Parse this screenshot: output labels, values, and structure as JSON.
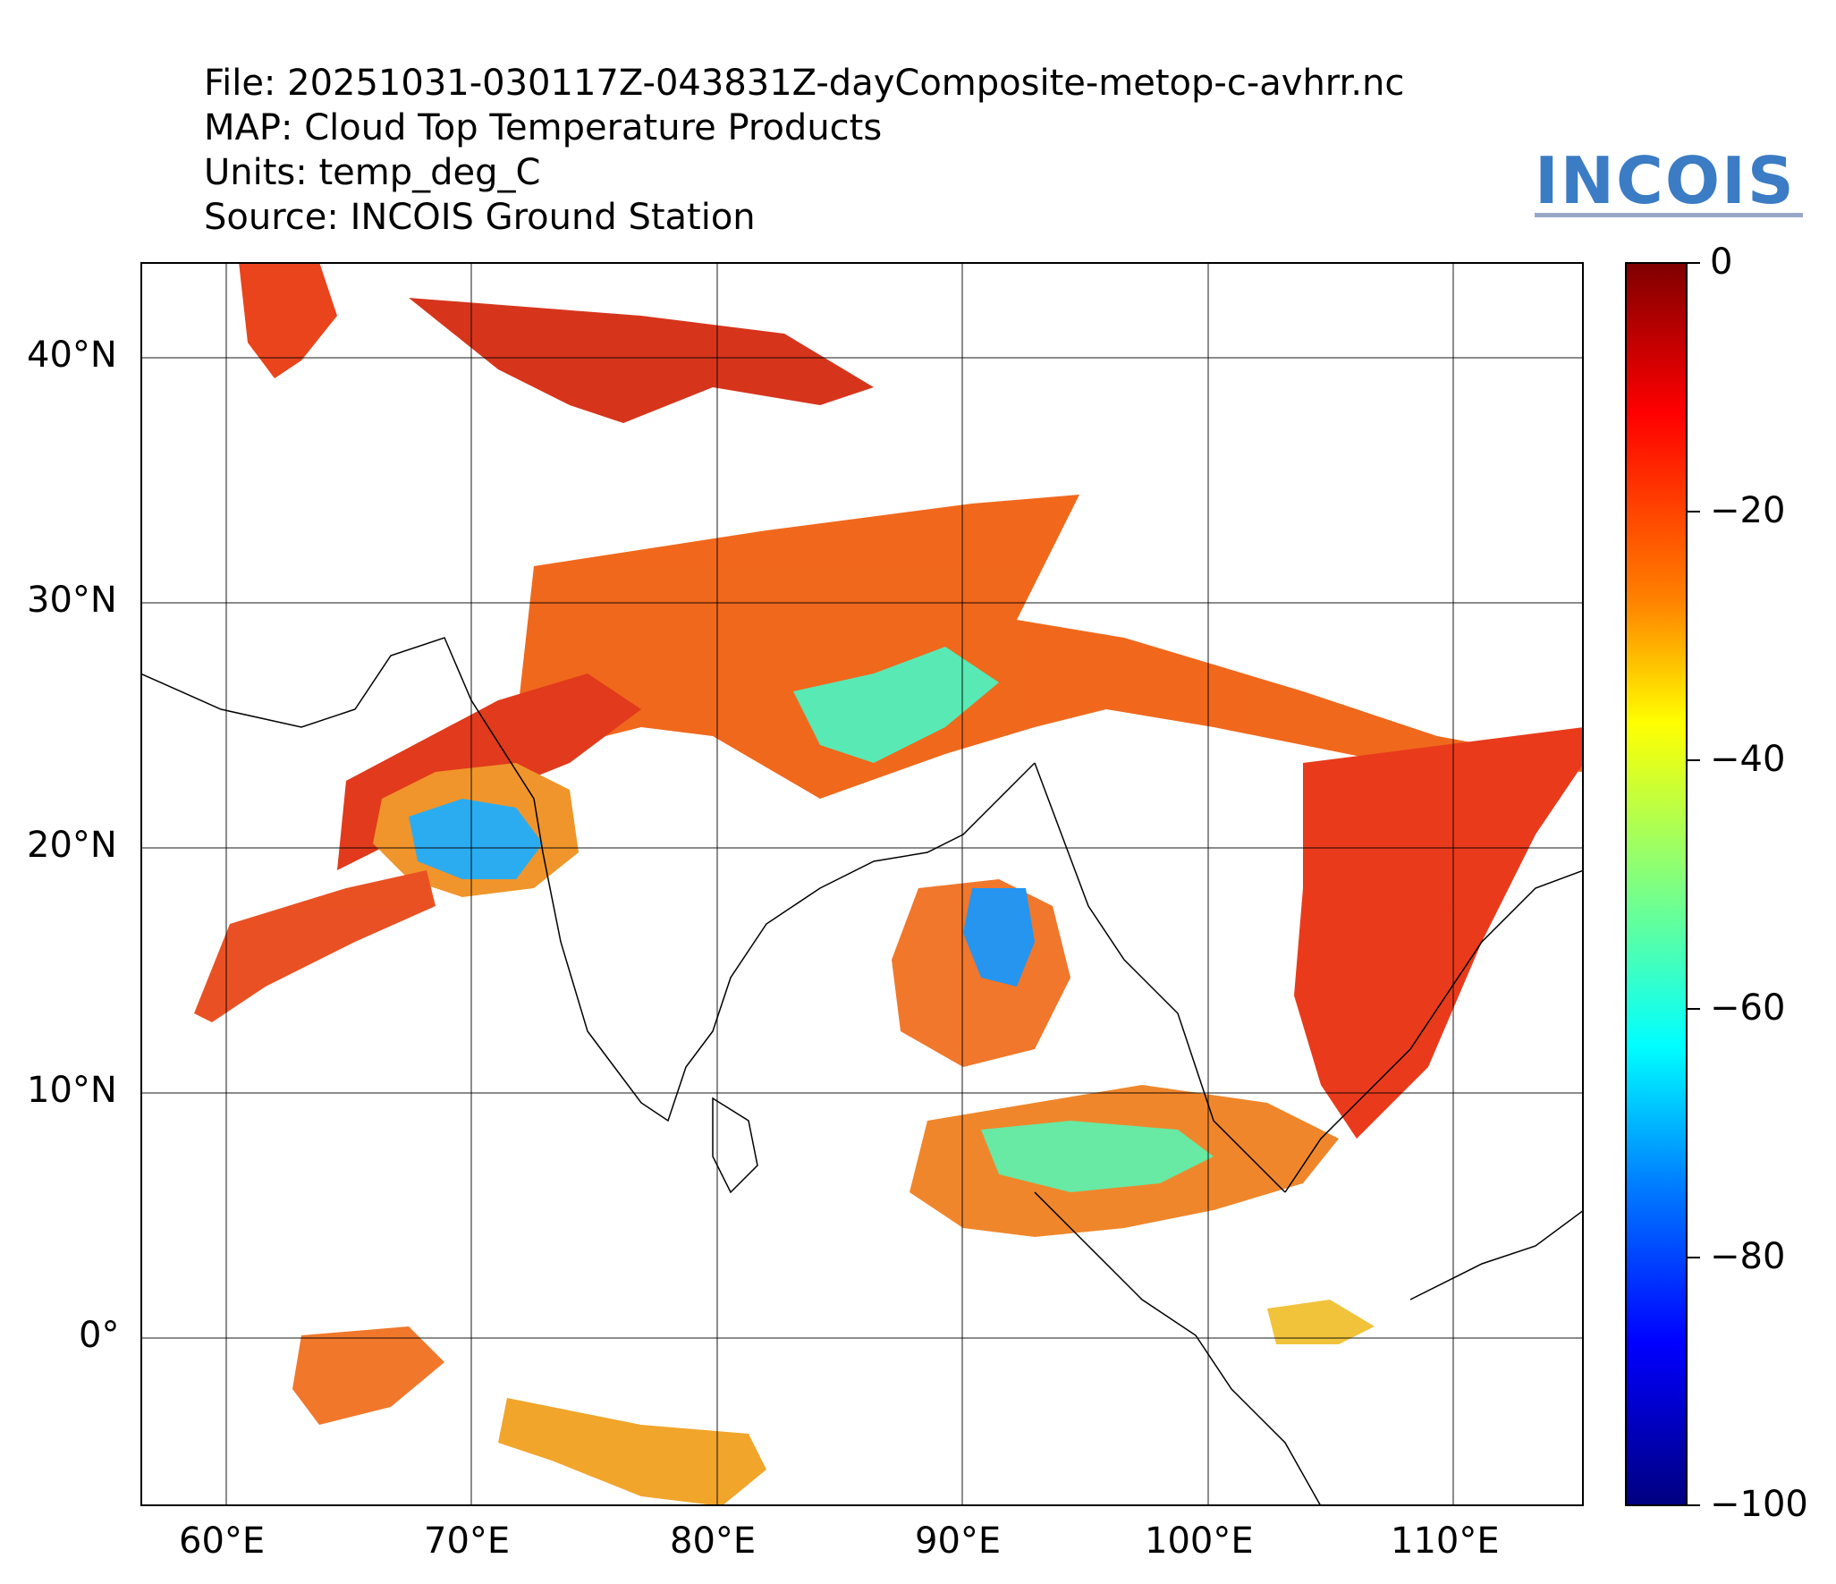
{
  "header": {
    "file": "File: 20251031-030117Z-043831Z-dayComposite-metop-c-avhrr.nc",
    "map": "MAP: Cloud Top Temperature Products",
    "units": "Units: temp_deg_C",
    "source": "Source: INCOIS Ground Station"
  },
  "logo": {
    "text": "INCOIS",
    "color": "#3b7cc4"
  },
  "map": {
    "lon_range": [
      56.5,
      115.3
    ],
    "lat_range": [
      -6.8,
      43.9
    ],
    "lon_ticks": [
      "60°E",
      "70°E",
      "80°E",
      "90°E",
      "100°E",
      "110°E"
    ],
    "lat_ticks": [
      "40°N",
      "30°N",
      "20°N",
      "10°N",
      "0°"
    ],
    "grid": true
  },
  "colorbar": {
    "ticks": [
      "0",
      "−20",
      "−40",
      "−60",
      "−80",
      "−100"
    ],
    "range": [
      -100,
      0
    ],
    "colormap": "jet"
  }
}
